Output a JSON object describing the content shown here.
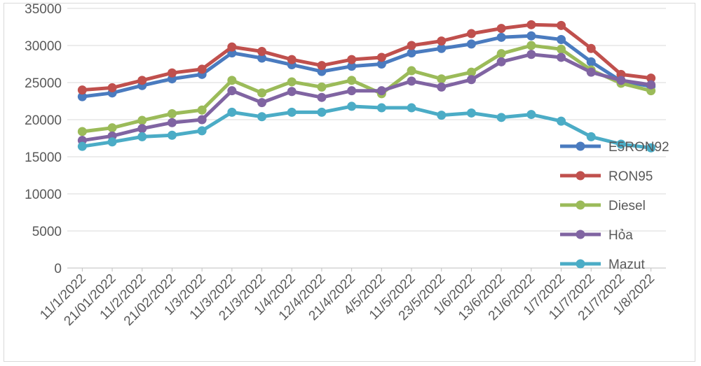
{
  "chart_data": {
    "type": "line",
    "title": "",
    "xlabel": "",
    "ylabel": "",
    "ylim": [
      0,
      35000
    ],
    "yticks": [
      0,
      5000,
      10000,
      15000,
      20000,
      25000,
      30000,
      35000
    ],
    "grid": "horizontal",
    "legend_position": "right",
    "categories": [
      "11/1/2022",
      "21/01/2022",
      "11/2/2022",
      "21/02/2022",
      "1/3/2022",
      "11/3/2022",
      "21/3/2022",
      "1/4/2022",
      "12/4/2022",
      "21/4/2022",
      "4/5/2022",
      "11/5/2022",
      "23/5/2022",
      "1/6/2022",
      "13/6/2022",
      "21/6/2022",
      "1/7/2022",
      "11/7/2022",
      "21/7/2022",
      "1/8/2022"
    ],
    "series": [
      {
        "name": "E5RON92",
        "color": "#4a7bbf",
        "values": [
          23100,
          23600,
          24600,
          25500,
          26100,
          29000,
          28300,
          27400,
          26500,
          27200,
          27500,
          29000,
          29600,
          30200,
          31100,
          31300,
          30800,
          27800,
          25200,
          24500
        ]
      },
      {
        "name": "RON95",
        "color": "#c0504d",
        "values": [
          24000,
          24300,
          25300,
          26300,
          26800,
          29800,
          29200,
          28100,
          27300,
          28100,
          28400,
          30000,
          30600,
          31600,
          32300,
          32800,
          32700,
          29600,
          26100,
          25600
        ]
      },
      {
        "name": "Diesel",
        "color": "#9bbb59",
        "values": [
          18400,
          18900,
          19900,
          20800,
          21300,
          25300,
          23600,
          25100,
          24400,
          25300,
          23500,
          26600,
          25500,
          26400,
          28900,
          30000,
          29500,
          26700,
          24900,
          23900
        ]
      },
      {
        "name": "Hỏa",
        "color": "#8064a2",
        "values": [
          17200,
          17800,
          18800,
          19600,
          20000,
          23900,
          22300,
          23800,
          23000,
          23900,
          23900,
          25200,
          24400,
          25400,
          27800,
          28800,
          28400,
          26400,
          25300,
          24700
        ]
      },
      {
        "name": "Mazut",
        "color": "#4bacc6",
        "values": [
          16400,
          17000,
          17700,
          17900,
          18500,
          21000,
          20400,
          21000,
          21000,
          21800,
          21600,
          21600,
          20600,
          20900,
          20300,
          20700,
          19800,
          17700,
          16700,
          16200
        ]
      }
    ]
  }
}
